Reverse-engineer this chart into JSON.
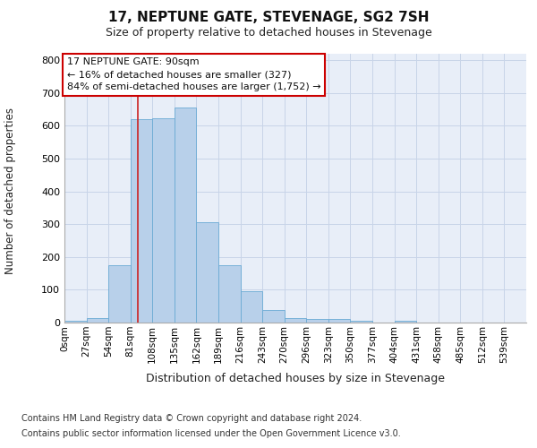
{
  "title": "17, NEPTUNE GATE, STEVENAGE, SG2 7SH",
  "subtitle": "Size of property relative to detached houses in Stevenage",
  "xlabel": "Distribution of detached houses by size in Stevenage",
  "ylabel": "Number of detached properties",
  "footnote1": "Contains HM Land Registry data © Crown copyright and database right 2024.",
  "footnote2": "Contains public sector information licensed under the Open Government Licence v3.0.",
  "bin_labels": [
    "0sqm",
    "27sqm",
    "54sqm",
    "81sqm",
    "108sqm",
    "135sqm",
    "162sqm",
    "189sqm",
    "216sqm",
    "243sqm",
    "270sqm",
    "296sqm",
    "323sqm",
    "350sqm",
    "377sqm",
    "404sqm",
    "431sqm",
    "458sqm",
    "485sqm",
    "512sqm",
    "539sqm"
  ],
  "bar_values": [
    5,
    13,
    175,
    620,
    622,
    655,
    305,
    175,
    97,
    38,
    14,
    12,
    10,
    5,
    0,
    5,
    0,
    0,
    0,
    0,
    0
  ],
  "bar_color": "#b8d0ea",
  "bar_edgecolor": "#6aaad4",
  "grid_color": "#c8d4e8",
  "background_color": "#e8eef8",
  "red_line_x": 90,
  "bin_width": 27,
  "annotation_line1": "17 NEPTUNE GATE: 90sqm",
  "annotation_line2": "← 16% of detached houses are smaller (327)",
  "annotation_line3": "84% of semi-detached houses are larger (1,752) →",
  "annotation_box_color": "#ffffff",
  "annotation_border_color": "#cc0000",
  "ylim": [
    0,
    820
  ],
  "yticks": [
    0,
    100,
    200,
    300,
    400,
    500,
    600,
    700,
    800
  ]
}
